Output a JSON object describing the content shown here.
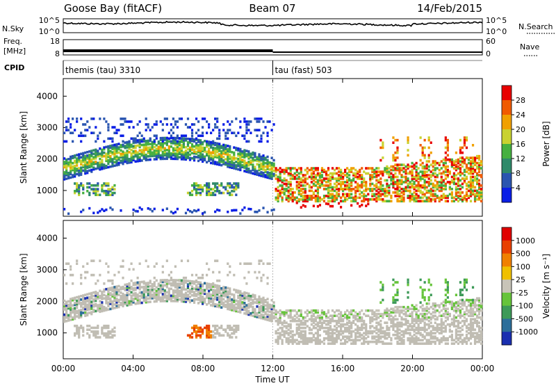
{
  "header": {
    "station": "Goose Bay (fitACF)",
    "beam": "Beam 07",
    "date": "14/Feb/2015"
  },
  "noise_panel": {
    "left_label": "N.Sky",
    "right_label": "N.Search",
    "right_ticks": [
      "10^5",
      "10^0"
    ],
    "left_ticks": [
      "10^5",
      "10^0"
    ]
  },
  "freq_panel": {
    "left_label_1": "Freq.",
    "left_label_2": "[MHz]",
    "left_ticks": [
      "18",
      "8"
    ],
    "right_label": "Nave",
    "right_ticks": [
      "60",
      "0"
    ]
  },
  "cpid": {
    "label": "CPID",
    "segments": [
      {
        "name": "themis (tau) 3310",
        "start_hour": 0,
        "end_hour": 12
      },
      {
        "name": "tau (fast) 503",
        "start_hour": 12,
        "end_hour": 24
      }
    ]
  },
  "x_axis": {
    "label": "Time UT",
    "ticks": [
      "00:00",
      "04:00",
      "08:00",
      "12:00",
      "16:00",
      "20:00",
      "00:00"
    ],
    "range_hours": [
      0,
      24
    ]
  },
  "colors": {
    "power": [
      "#0a1ee6",
      "#2a55b0",
      "#2f8a6a",
      "#46b040",
      "#c9d230",
      "#f0a000",
      "#f05a00",
      "#e80000"
    ],
    "velocity": [
      "#1a2fb0",
      "#2c6e9a",
      "#3d9a58",
      "#66c43a",
      "#c8c4b8",
      "#f0c000",
      "#f08000",
      "#e84000",
      "#e00000"
    ],
    "ground_scatter": "#c0bdb3"
  },
  "chart_data": [
    {
      "type": "heatmap",
      "panel": "power",
      "ylabel": "Slant Range [km]",
      "yticks": [
        "1000",
        "2000",
        "3000",
        "4000"
      ],
      "ylim": [
        180,
        4560
      ],
      "xlim": [
        0,
        24
      ],
      "colorbar_label": "Power [dB]",
      "colorbar_ticks": [
        "4",
        "8",
        "12",
        "16",
        "20",
        "24",
        "28"
      ],
      "colorbar_range": [
        0,
        30
      ],
      "grid": false
    },
    {
      "type": "heatmap",
      "panel": "velocity",
      "ylabel": "Slant Range [km]",
      "yticks": [
        "1000",
        "2000",
        "3000",
        "4000"
      ],
      "ylim": [
        180,
        4560
      ],
      "xlim": [
        0,
        24
      ],
      "colorbar_label": "Velocity [m s⁻¹]",
      "colorbar_ticks": [
        "1000",
        "500",
        "100",
        "25",
        "-25",
        "-100",
        "-500",
        "-1000"
      ],
      "grid": false
    }
  ]
}
